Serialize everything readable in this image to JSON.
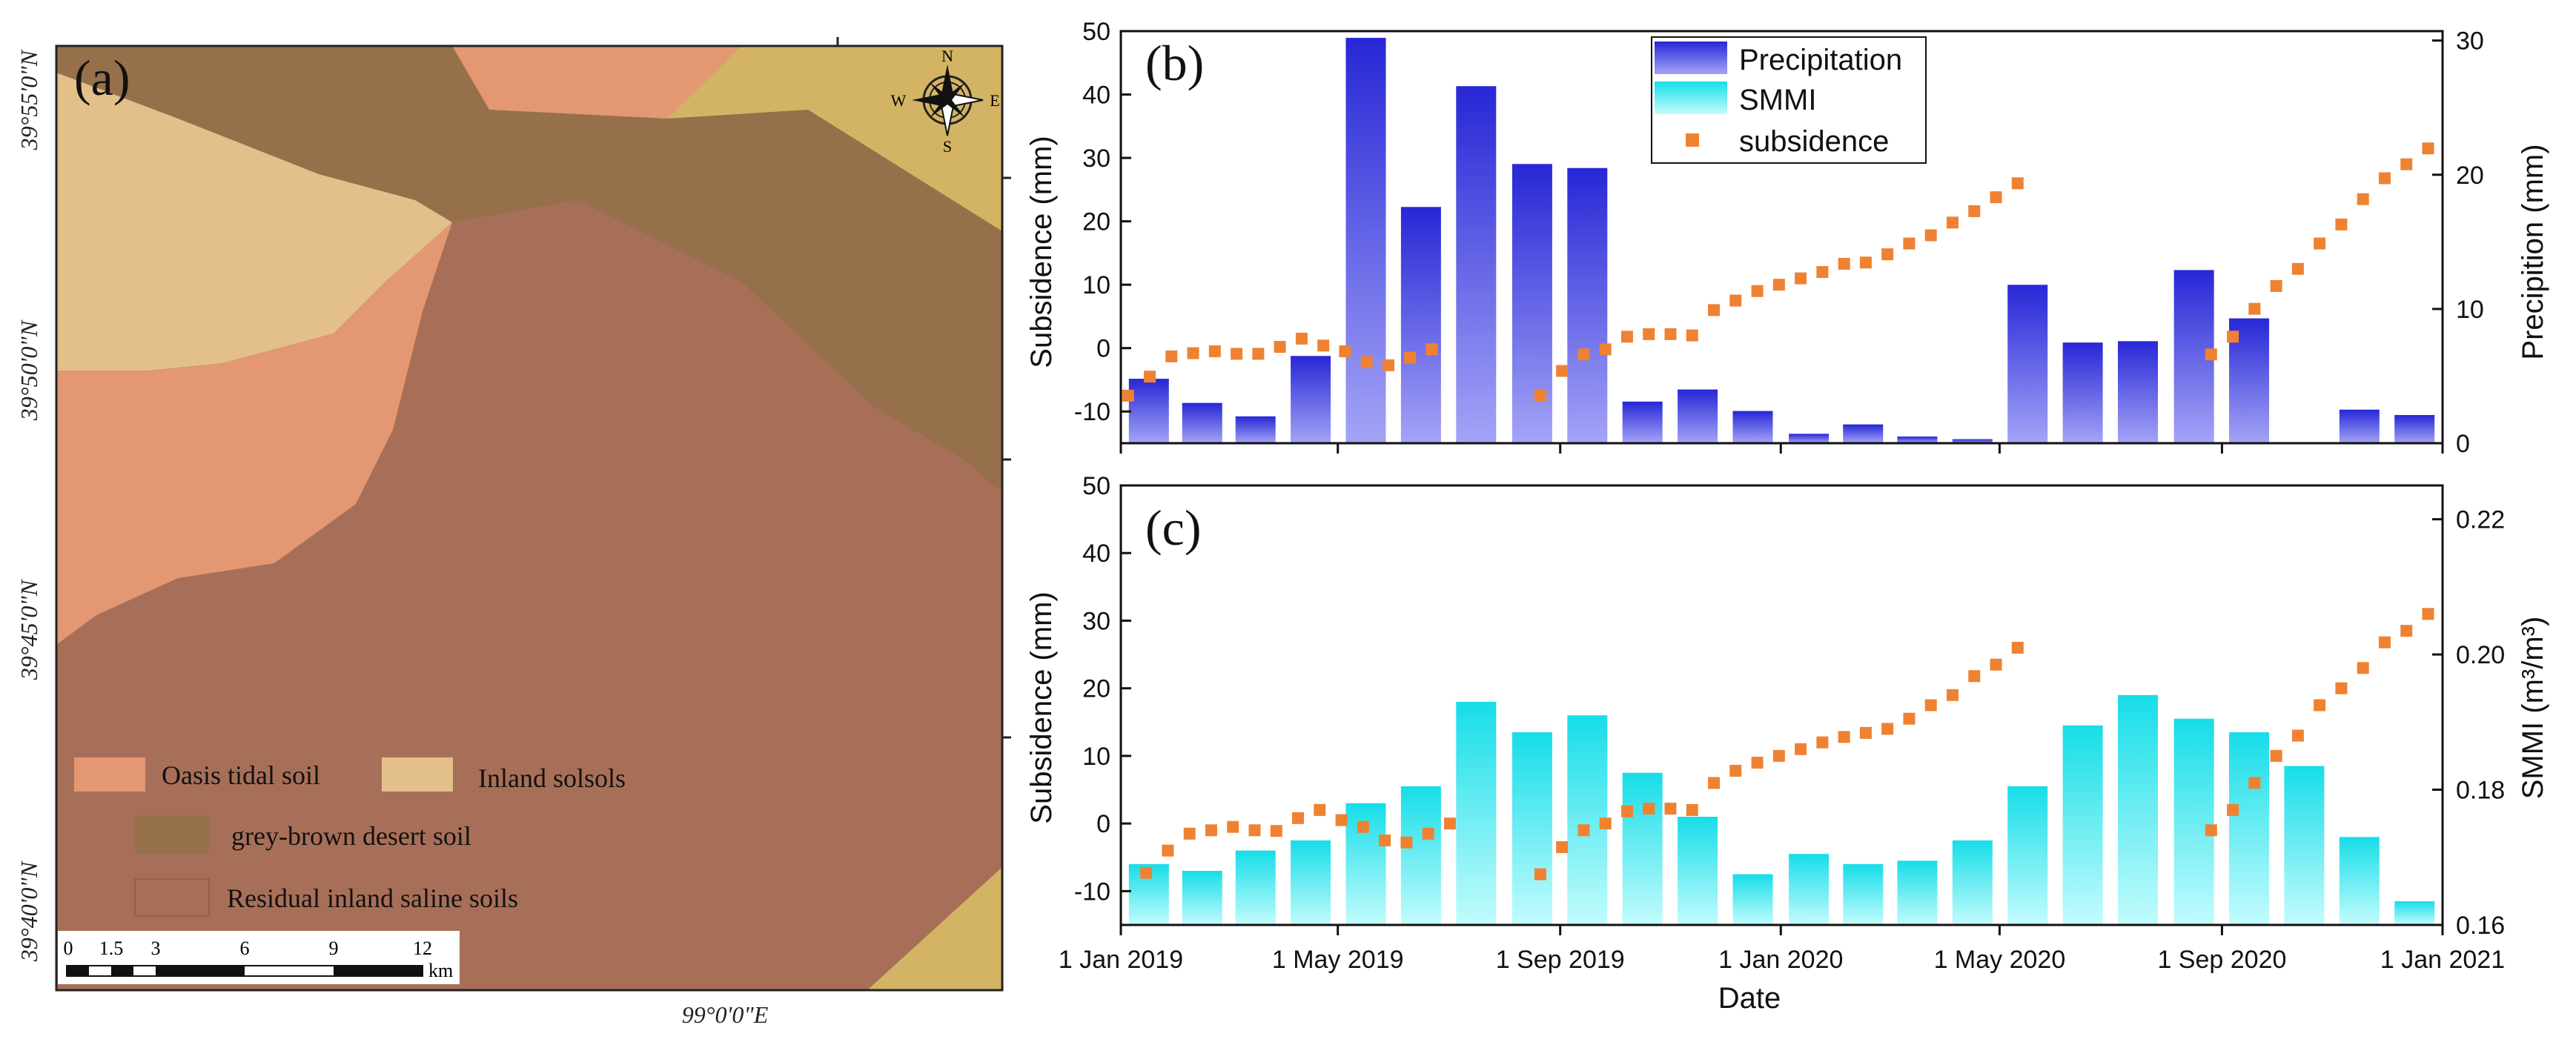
{
  "map": {
    "panel_label": "(a)",
    "lat_labels": [
      "39°55'0\"N",
      "39°50'0\"N",
      "39°45'0\"N",
      "39°40'0\"N"
    ],
    "lon_label": "99°0'0\"E",
    "compass": {
      "n": "N",
      "s": "S",
      "e": "E",
      "w": "W"
    },
    "legend": [
      {
        "label": "Oasis tidal soil",
        "color": "#e39772"
      },
      {
        "label": "Inland solsols",
        "color": "#e3c08a"
      },
      {
        "label": "grey-brown desert soil",
        "color": "#96704b"
      },
      {
        "label": "Residual inland saline soils",
        "color": "#a86f58"
      }
    ],
    "scalebar": {
      "ticks": [
        "0",
        "1.5",
        "3",
        "6",
        "9",
        "12"
      ],
      "unit": "km"
    },
    "extra_color": "#d3b464"
  },
  "chart_data": [
    {
      "type": "bar",
      "panel_label": "(b)",
      "title": "",
      "x_dates": [
        "2019-01",
        "2019-02",
        "2019-03",
        "2019-04",
        "2019-05",
        "2019-06",
        "2019-07",
        "2019-08",
        "2019-09",
        "2019-10",
        "2019-11",
        "2019-12",
        "2020-01",
        "2020-02",
        "2020-03",
        "2020-04",
        "2020-05",
        "2020-06",
        "2020-07",
        "2020-08",
        "2020-09",
        "2020-10",
        "2020-11",
        "2020-12"
      ],
      "xlabel": "",
      "ylabel_left": "Subsidence (mm)",
      "ylabel_right": "Precipition (mm)",
      "ylim_left": [
        -15,
        50
      ],
      "ylim_right": [
        0,
        30.7
      ],
      "yticks_left": [
        -10,
        0,
        10,
        20,
        30,
        40,
        50
      ],
      "yticks_right": [
        0,
        10,
        20,
        30
      ],
      "series": [
        {
          "name": "Precipitation",
          "axis": "right",
          "kind": "bar",
          "values": [
            4.8,
            3.0,
            2.0,
            6.5,
            30.2,
            17.6,
            26.6,
            20.8,
            20.5,
            3.1,
            4.0,
            2.4,
            0.7,
            1.4,
            0.5,
            0.3,
            11.8,
            7.5,
            7.6,
            12.9,
            9.3,
            0,
            2.5,
            2.1
          ]
        },
        {
          "name": "subsidence",
          "axis": "left",
          "kind": "scatter",
          "points": [
            [
              "2019-01-05",
              -7.5
            ],
            [
              "2019-01-17",
              -4.5
            ],
            [
              "2019-01-29",
              -1.3
            ],
            [
              "2019-02-10",
              -0.8
            ],
            [
              "2019-02-22",
              -0.5
            ],
            [
              "2019-03-06",
              -0.9
            ],
            [
              "2019-03-18",
              -0.9
            ],
            [
              "2019-03-30",
              0.2
            ],
            [
              "2019-04-11",
              1.5
            ],
            [
              "2019-04-23",
              0.4
            ],
            [
              "2019-05-05",
              -0.5
            ],
            [
              "2019-05-17",
              -2.2
            ],
            [
              "2019-05-29",
              -2.7
            ],
            [
              "2019-06-10",
              -1.5
            ],
            [
              "2019-06-22",
              -0.2
            ],
            [
              "2019-08-21",
              -7.5
            ],
            [
              "2019-09-02",
              -3.6
            ],
            [
              "2019-09-14",
              -1.0
            ],
            [
              "2019-09-26",
              -0.2
            ],
            [
              "2019-10-08",
              1.8
            ],
            [
              "2019-10-20",
              2.2
            ],
            [
              "2019-11-01",
              2.2
            ],
            [
              "2019-11-13",
              2.0
            ],
            [
              "2019-11-25",
              6.0
            ],
            [
              "2019-12-07",
              7.5
            ],
            [
              "2019-12-19",
              9.0
            ],
            [
              "2019-12-31",
              10.0
            ],
            [
              "2020-01-12",
              11.0
            ],
            [
              "2020-01-24",
              12.0
            ],
            [
              "2020-02-05",
              13.3
            ],
            [
              "2020-02-17",
              13.5
            ],
            [
              "2020-02-29",
              14.8
            ],
            [
              "2020-03-12",
              16.5
            ],
            [
              "2020-03-24",
              17.8
            ],
            [
              "2020-04-05",
              19.8
            ],
            [
              "2020-04-17",
              21.6
            ],
            [
              "2020-04-29",
              23.8
            ],
            [
              "2020-05-11",
              26.0
            ],
            [
              "2020-08-26",
              -1.0
            ],
            [
              "2020-09-07",
              1.8
            ],
            [
              "2020-09-19",
              6.2
            ],
            [
              "2020-10-01",
              9.8
            ],
            [
              "2020-10-13",
              12.5
            ],
            [
              "2020-10-25",
              16.5
            ],
            [
              "2020-11-06",
              19.5
            ],
            [
              "2020-11-18",
              23.5
            ],
            [
              "2020-11-30",
              26.8
            ],
            [
              "2020-12-12",
              29.0
            ],
            [
              "2020-12-24",
              31.5
            ]
          ]
        }
      ],
      "legend": [
        "Precipitation",
        "SMMI",
        "subsidence"
      ],
      "colors": {
        "precip_top": "#2b2bd9",
        "precip_bottom": "#9a9af5",
        "smmi_top": "#18e0ea",
        "smmi_bottom": "#b9fbfd",
        "subsidence": "#ef8232"
      }
    },
    {
      "type": "bar",
      "panel_label": "(c)",
      "title": "",
      "x_dates": [
        "2019-01",
        "2019-02",
        "2019-03",
        "2019-04",
        "2019-05",
        "2019-06",
        "2019-07",
        "2019-08",
        "2019-09",
        "2019-10",
        "2019-11",
        "2019-12",
        "2020-01",
        "2020-02",
        "2020-03",
        "2020-04",
        "2020-05",
        "2020-06",
        "2020-07",
        "2020-08",
        "2020-09",
        "2020-10",
        "2020-11",
        "2020-12"
      ],
      "xlabel": "Date",
      "xtick_labels": [
        "1 Jan 2019",
        "1 May 2019",
        "1 Sep 2019",
        "1 Jan 2020",
        "1 May 2020",
        "1 Sep 2020",
        "1 Jan 2021"
      ],
      "ylabel_left": "Subsidence (mm)",
      "ylabel_right": "SMMI (m³/m³)",
      "ylim_left": [
        -15,
        50
      ],
      "ylim_right": [
        0.16,
        0.225
      ],
      "yticks_left": [
        -10,
        0,
        10,
        20,
        30,
        40,
        50
      ],
      "yticks_right": [
        0.16,
        0.18,
        0.2,
        0.22
      ],
      "yticks_right_labels": [
        "0.16",
        "0.18",
        "0.20",
        "0.22"
      ],
      "series": [
        {
          "name": "SMMI",
          "axis": "right",
          "kind": "bar",
          "values": [
            0.169,
            0.168,
            0.171,
            0.1725,
            0.178,
            0.1805,
            0.193,
            0.1885,
            0.191,
            0.1825,
            0.176,
            0.1675,
            0.1705,
            0.169,
            0.1695,
            0.1725,
            0.1805,
            0.1895,
            0.194,
            0.1905,
            0.1885,
            0.1835,
            0.173,
            0.1635
          ]
        },
        {
          "name": "subsidence",
          "axis": "left",
          "kind": "scatter",
          "points": [
            [
              "2019-01-15",
              -7.3
            ],
            [
              "2019-01-27",
              -4.0
            ],
            [
              "2019-02-08",
              -1.5
            ],
            [
              "2019-02-20",
              -1.0
            ],
            [
              "2019-03-04",
              -0.5
            ],
            [
              "2019-03-16",
              -1.0
            ],
            [
              "2019-03-28",
              -1.1
            ],
            [
              "2019-04-09",
              0.8
            ],
            [
              "2019-04-21",
              2.0
            ],
            [
              "2019-05-03",
              0.5
            ],
            [
              "2019-05-15",
              -0.5
            ],
            [
              "2019-05-27",
              -2.5
            ],
            [
              "2019-06-08",
              -2.8
            ],
            [
              "2019-06-20",
              -1.5
            ],
            [
              "2019-07-02",
              0.0
            ],
            [
              "2019-08-21",
              -7.5
            ],
            [
              "2019-09-02",
              -3.5
            ],
            [
              "2019-09-14",
              -1.0
            ],
            [
              "2019-09-26",
              0.0
            ],
            [
              "2019-10-08",
              1.8
            ],
            [
              "2019-10-20",
              2.2
            ],
            [
              "2019-11-01",
              2.2
            ],
            [
              "2019-11-13",
              2.0
            ],
            [
              "2019-11-25",
              6.0
            ],
            [
              "2019-12-07",
              7.8
            ],
            [
              "2019-12-19",
              9.0
            ],
            [
              "2019-12-31",
              10.0
            ],
            [
              "2020-01-12",
              11.0
            ],
            [
              "2020-01-24",
              12.0
            ],
            [
              "2020-02-05",
              12.8
            ],
            [
              "2020-02-17",
              13.4
            ],
            [
              "2020-02-29",
              14.0
            ],
            [
              "2020-03-12",
              15.5
            ],
            [
              "2020-03-24",
              17.5
            ],
            [
              "2020-04-05",
              19.0
            ],
            [
              "2020-04-17",
              21.8
            ],
            [
              "2020-04-29",
              23.5
            ],
            [
              "2020-05-11",
              26.0
            ],
            [
              "2020-08-26",
              -1.0
            ],
            [
              "2020-09-07",
              2.0
            ],
            [
              "2020-09-19",
              6.0
            ],
            [
              "2020-10-01",
              10.0
            ],
            [
              "2020-10-13",
              13.0
            ],
            [
              "2020-10-25",
              17.5
            ],
            [
              "2020-11-06",
              20.0
            ],
            [
              "2020-11-18",
              23.0
            ],
            [
              "2020-11-30",
              26.8
            ],
            [
              "2020-12-12",
              28.5
            ],
            [
              "2020-12-24",
              31.0
            ]
          ]
        }
      ],
      "colors": {
        "smmi_top": "#18e0ea",
        "smmi_bottom": "#b9fbfd",
        "subsidence": "#ef8232"
      }
    }
  ]
}
